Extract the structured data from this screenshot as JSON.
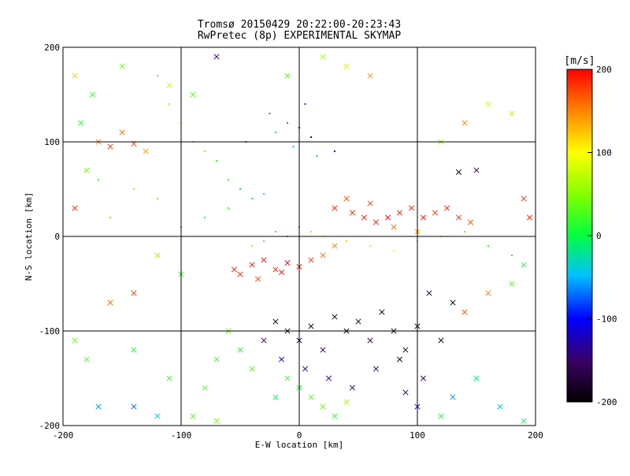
{
  "chart_data": {
    "type": "scatter",
    "title": "Tromsø 20150429 20:22:00-20:23:43",
    "subtitle": "RwPretec (8p) EXPERIMENTAL SKYMAP",
    "xlabel": "E-W location [km]",
    "ylabel": "N-S location [km]",
    "xlim": [
      -200,
      200
    ],
    "ylim": [
      -200,
      200
    ],
    "x_ticks": [
      "-200",
      "-100",
      "0",
      "100",
      "200"
    ],
    "y_ticks": [
      "-200",
      "-100",
      "0",
      "100",
      "200"
    ],
    "grid": true,
    "colorbar": {
      "label": "[m/s]",
      "range": [
        -200,
        200
      ],
      "ticks": [
        "-200",
        "-100",
        "0",
        "100",
        "200"
      ],
      "colormap": "rainbow: black-purple-blue-cyan-green-yellow-red"
    },
    "markers": [
      "dot",
      "x"
    ],
    "points": [
      [
        -185,
        120,
        10,
        "x"
      ],
      [
        -170,
        100,
        150,
        "x"
      ],
      [
        -160,
        95,
        180,
        "x"
      ],
      [
        -150,
        110,
        160,
        "x"
      ],
      [
        -140,
        98,
        170,
        "x"
      ],
      [
        -130,
        90,
        140,
        "x"
      ],
      [
        -190,
        30,
        190,
        "x"
      ],
      [
        -180,
        70,
        40,
        "x"
      ],
      [
        -175,
        150,
        20,
        "x"
      ],
      [
        -150,
        180,
        40,
        "x"
      ],
      [
        -120,
        170,
        30,
        "dot"
      ],
      [
        -110,
        140,
        60,
        "dot"
      ],
      [
        -100,
        120,
        90,
        "dot"
      ],
      [
        -90,
        100,
        60,
        "dot"
      ],
      [
        -80,
        90,
        50,
        "dot"
      ],
      [
        -70,
        80,
        30,
        "dot"
      ],
      [
        -60,
        60,
        20,
        "dot"
      ],
      [
        -50,
        50,
        0,
        "dot"
      ],
      [
        -40,
        40,
        -20,
        "dot"
      ],
      [
        -30,
        45,
        10,
        "dot"
      ],
      [
        -20,
        110,
        -40,
        "dot"
      ],
      [
        -10,
        120,
        -60,
        "dot"
      ],
      [
        0,
        115,
        -90,
        "dot"
      ],
      [
        10,
        105,
        -110,
        "dot"
      ],
      [
        -5,
        95,
        -50,
        "dot"
      ],
      [
        15,
        85,
        -30,
        "dot"
      ],
      [
        -25,
        130,
        -60,
        "dot"
      ],
      [
        5,
        140,
        -80,
        "dot"
      ],
      [
        30,
        90,
        -120,
        "dot"
      ],
      [
        -45,
        100,
        -70,
        "dot"
      ],
      [
        30,
        30,
        190,
        "x"
      ],
      [
        45,
        25,
        185,
        "x"
      ],
      [
        55,
        20,
        195,
        "x"
      ],
      [
        65,
        15,
        190,
        "x"
      ],
      [
        75,
        20,
        200,
        "x"
      ],
      [
        85,
        25,
        185,
        "x"
      ],
      [
        95,
        30,
        190,
        "x"
      ],
      [
        105,
        20,
        195,
        "x"
      ],
      [
        115,
        25,
        180,
        "x"
      ],
      [
        125,
        30,
        190,
        "x"
      ],
      [
        135,
        20,
        185,
        "x"
      ],
      [
        145,
        15,
        170,
        "x"
      ],
      [
        40,
        40,
        170,
        "x"
      ],
      [
        60,
        35,
        175,
        "x"
      ],
      [
        80,
        10,
        160,
        "x"
      ],
      [
        100,
        5,
        140,
        "x"
      ],
      [
        -40,
        -30,
        190,
        "x"
      ],
      [
        -30,
        -25,
        195,
        "x"
      ],
      [
        -20,
        -35,
        185,
        "x"
      ],
      [
        -10,
        -28,
        200,
        "x"
      ],
      [
        0,
        -32,
        190,
        "x"
      ],
      [
        10,
        -25,
        180,
        "x"
      ],
      [
        -50,
        -40,
        185,
        "x"
      ],
      [
        -55,
        -35,
        190,
        "x"
      ],
      [
        -35,
        -45,
        175,
        "x"
      ],
      [
        -15,
        -38,
        195,
        "x"
      ],
      [
        20,
        -20,
        160,
        "x"
      ],
      [
        30,
        -10,
        150,
        "x"
      ],
      [
        -40,
        -10,
        60,
        "dot"
      ],
      [
        -30,
        -5,
        30,
        "dot"
      ],
      [
        -20,
        5,
        10,
        "dot"
      ],
      [
        -10,
        0,
        -10,
        "dot"
      ],
      [
        0,
        10,
        20,
        "dot"
      ],
      [
        10,
        5,
        60,
        "dot"
      ],
      [
        20,
        0,
        100,
        "dot"
      ],
      [
        40,
        -5,
        120,
        "dot"
      ],
      [
        60,
        -10,
        110,
        "dot"
      ],
      [
        80,
        -15,
        90,
        "dot"
      ],
      [
        100,
        -5,
        70,
        "dot"
      ],
      [
        120,
        0,
        50,
        "dot"
      ],
      [
        140,
        5,
        30,
        "dot"
      ],
      [
        160,
        -10,
        20,
        "dot"
      ],
      [
        180,
        -20,
        10,
        "dot"
      ],
      [
        -60,
        30,
        20,
        "dot"
      ],
      [
        -80,
        20,
        10,
        "dot"
      ],
      [
        -100,
        10,
        30,
        "dot"
      ],
      [
        -120,
        40,
        40,
        "dot"
      ],
      [
        -140,
        50,
        60,
        "dot"
      ],
      [
        -160,
        20,
        50,
        "dot"
      ],
      [
        -170,
        60,
        20,
        "dot"
      ],
      [
        -20,
        -90,
        -190,
        "x"
      ],
      [
        -10,
        -100,
        -180,
        "x"
      ],
      [
        0,
        -110,
        -170,
        "x"
      ],
      [
        10,
        -95,
        -200,
        "x"
      ],
      [
        20,
        -120,
        -160,
        "x"
      ],
      [
        30,
        -85,
        -190,
        "x"
      ],
      [
        40,
        -100,
        -200,
        "x"
      ],
      [
        50,
        -90,
        -180,
        "x"
      ],
      [
        60,
        -110,
        -170,
        "x"
      ],
      [
        70,
        -80,
        -195,
        "x"
      ],
      [
        80,
        -100,
        -185,
        "x"
      ],
      [
        90,
        -120,
        -175,
        "x"
      ],
      [
        100,
        -95,
        -190,
        "x"
      ],
      [
        -30,
        -110,
        -150,
        "x"
      ],
      [
        -15,
        -130,
        -130,
        "x"
      ],
      [
        5,
        -140,
        -140,
        "x"
      ],
      [
        25,
        -150,
        -120,
        "x"
      ],
      [
        45,
        -160,
        -150,
        "x"
      ],
      [
        65,
        -140,
        -160,
        "x"
      ],
      [
        85,
        -130,
        -180,
        "x"
      ],
      [
        105,
        -150,
        -170,
        "x"
      ],
      [
        120,
        -110,
        -190,
        "x"
      ],
      [
        130,
        -70,
        -200,
        "x"
      ],
      [
        110,
        -60,
        -180,
        "x"
      ],
      [
        -10,
        -150,
        20,
        "x"
      ],
      [
        0,
        -160,
        10,
        "x"
      ],
      [
        10,
        -170,
        30,
        "x"
      ],
      [
        20,
        -180,
        40,
        "x"
      ],
      [
        -20,
        -170,
        0,
        "x"
      ],
      [
        30,
        -190,
        20,
        "x"
      ],
      [
        40,
        -175,
        60,
        "x"
      ],
      [
        -40,
        -140,
        30,
        "x"
      ],
      [
        -50,
        -120,
        10,
        "x"
      ],
      [
        -60,
        -100,
        40,
        "x"
      ],
      [
        -70,
        -130,
        20,
        "x"
      ],
      [
        -80,
        -160,
        30,
        "x"
      ],
      [
        -110,
        -150,
        20,
        "x"
      ],
      [
        -140,
        -120,
        10,
        "x"
      ],
      [
        -180,
        -130,
        30,
        "x"
      ],
      [
        -190,
        -110,
        40,
        "x"
      ],
      [
        -160,
        -70,
        160,
        "x"
      ],
      [
        -140,
        -60,
        180,
        "x"
      ],
      [
        -120,
        -20,
        60,
        "x"
      ],
      [
        -100,
        -40,
        20,
        "x"
      ],
      [
        140,
        -80,
        170,
        "x"
      ],
      [
        160,
        -60,
        150,
        "x"
      ],
      [
        180,
        -50,
        30,
        "x"
      ],
      [
        190,
        -30,
        10,
        "x"
      ],
      [
        150,
        -150,
        -20,
        "x"
      ],
      [
        170,
        -180,
        -40,
        "x"
      ],
      [
        190,
        -195,
        0,
        "x"
      ],
      [
        130,
        -170,
        -60,
        "x"
      ],
      [
        120,
        -190,
        10,
        "x"
      ],
      [
        100,
        -180,
        -110,
        "x"
      ],
      [
        90,
        -165,
        -130,
        "x"
      ],
      [
        -170,
        -180,
        -60,
        "x"
      ],
      [
        -140,
        -180,
        -70,
        "x"
      ],
      [
        -120,
        -190,
        -40,
        "x"
      ],
      [
        -90,
        -190,
        30,
        "x"
      ],
      [
        -70,
        -195,
        40,
        "x"
      ],
      [
        150,
        70,
        -170,
        "x"
      ],
      [
        135,
        68,
        -200,
        "x"
      ],
      [
        120,
        100,
        60,
        "x"
      ],
      [
        140,
        120,
        150,
        "x"
      ],
      [
        160,
        140,
        80,
        "x"
      ],
      [
        180,
        130,
        70,
        "x"
      ],
      [
        190,
        40,
        180,
        "x"
      ],
      [
        195,
        20,
        190,
        "x"
      ],
      [
        60,
        170,
        140,
        "x"
      ],
      [
        40,
        180,
        80,
        "x"
      ],
      [
        20,
        190,
        60,
        "x"
      ],
      [
        -10,
        170,
        30,
        "x"
      ],
      [
        -70,
        190,
        -150,
        "x"
      ],
      [
        -90,
        150,
        30,
        "x"
      ],
      [
        -110,
        160,
        80,
        "x"
      ],
      [
        -190,
        170,
        120,
        "x"
      ]
    ]
  }
}
